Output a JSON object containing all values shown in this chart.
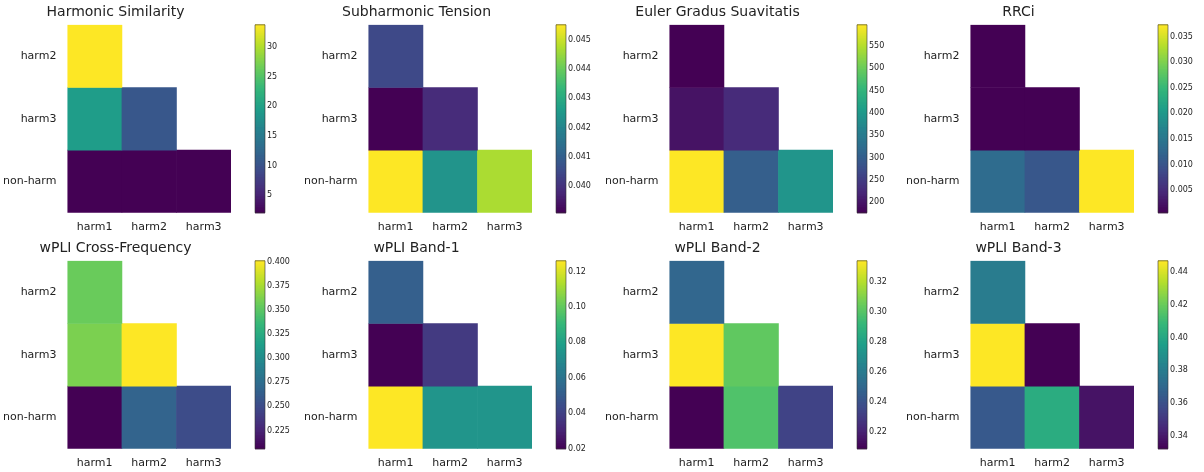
{
  "chart_data": [
    {
      "type": "heatmap",
      "title": "Harmonic Similarity",
      "categories": [
        "harm1",
        "harm2",
        "harm3"
      ],
      "y_categories": [
        "harm2",
        "harm3",
        "non-harm"
      ],
      "cells": [
        [
          33.8,
          null,
          null
        ],
        [
          19.5,
          10.6,
          null
        ],
        [
          2.0,
          2.0,
          2.0
        ]
      ],
      "clim": [
        2.0,
        33.8
      ],
      "cticks": [
        5,
        10,
        15,
        20,
        25,
        30
      ]
    },
    {
      "type": "heatmap",
      "title": "Subharmonic Tension",
      "categories": [
        "harm1",
        "harm2",
        "harm3"
      ],
      "y_categories": [
        "harm2",
        "harm3",
        "non-harm"
      ],
      "cells": [
        [
          0.0405,
          null,
          null
        ],
        [
          0.0391,
          0.0399,
          null
        ],
        [
          0.0455,
          0.0424,
          0.0447
        ]
      ],
      "clim": [
        0.0391,
        0.0455
      ],
      "cticks": [
        {
          "value": 0.04,
          "label": "0.040"
        },
        0.041,
        0.042,
        0.043,
        0.044,
        0.045
      ]
    },
    {
      "type": "heatmap",
      "title": "Euler Gradus Suavitatis",
      "categories": [
        "harm1",
        "harm2",
        "harm3"
      ],
      "y_categories": [
        "harm2",
        "harm3",
        "non-harm"
      ],
      "cells": [
        [
          176,
          null,
          null
        ],
        [
          197,
          227,
          null
        ],
        [
          597,
          302,
          395
        ]
      ],
      "clim": [
        176,
        597
      ],
      "cticks": [
        200,
        250,
        300,
        350,
        400,
        450,
        500,
        550
      ]
    },
    {
      "type": "heatmap",
      "title": "RRCi",
      "categories": [
        "harm1",
        "harm2",
        "harm3"
      ],
      "y_categories": [
        "harm2",
        "harm3",
        "non-harm"
      ],
      "cells": [
        [
          0.0006,
          null,
          null
        ],
        [
          0.0006,
          0.0006,
          null
        ],
        [
          0.0134,
          0.0105,
          0.0373
        ]
      ],
      "clim": [
        0.0006,
        0.0373
      ],
      "cticks": [
        0.005,
        {
          "value": 0.01,
          "label": "0.010"
        },
        0.015,
        {
          "value": 0.02,
          "label": "0.020"
        },
        0.025,
        {
          "value": 0.03,
          "label": "0.030"
        },
        0.035
      ]
    },
    {
      "type": "heatmap",
      "title": "wPLI Cross-Frequency",
      "categories": [
        "harm1",
        "harm2",
        "harm3"
      ],
      "y_categories": [
        "harm2",
        "harm3",
        "non-harm"
      ],
      "cells": [
        [
          0.356,
          null,
          null
        ],
        [
          0.362,
          0.401,
          null
        ],
        [
          0.206,
          0.268,
          0.251
        ]
      ],
      "clim": [
        0.206,
        0.401
      ],
      "cticks": [
        0.225,
        {
          "value": 0.25,
          "label": "0.250"
        },
        0.275,
        {
          "value": 0.3,
          "label": "0.300"
        },
        0.325,
        {
          "value": 0.35,
          "label": "0.350"
        },
        0.375,
        {
          "value": 0.4,
          "label": "0.400"
        }
      ]
    },
    {
      "type": "heatmap",
      "title": "wPLI Band-1",
      "categories": [
        "harm1",
        "harm2",
        "harm3"
      ],
      "y_categories": [
        "harm2",
        "harm3",
        "non-harm"
      ],
      "cells": [
        [
          0.052,
          null,
          null
        ],
        [
          0.02,
          0.038,
          null
        ],
        [
          0.126,
          0.075,
          0.075
        ]
      ],
      "clim": [
        0.02,
        0.126
      ],
      "cticks": [
        0.02,
        0.04,
        0.06,
        0.08,
        {
          "value": 0.1,
          "label": "0.10"
        },
        0.12
      ]
    },
    {
      "type": "heatmap",
      "title": "wPLI Band-2",
      "categories": [
        "harm1",
        "harm2",
        "harm3"
      ],
      "y_categories": [
        "harm2",
        "harm3",
        "non-harm"
      ],
      "cells": [
        [
          0.25,
          null,
          null
        ],
        [
          0.334,
          0.303,
          null
        ],
        [
          0.209,
          0.299,
          0.234
        ]
      ],
      "clim": [
        0.209,
        0.334
      ],
      "cticks": [
        0.22,
        0.24,
        0.26,
        0.28,
        {
          "value": 0.3,
          "label": "0.30"
        },
        0.32
      ]
    },
    {
      "type": "heatmap",
      "title": "wPLI Band-3",
      "categories": [
        "harm1",
        "harm2",
        "harm3"
      ],
      "y_categories": [
        "harm2",
        "harm3",
        "non-harm"
      ],
      "cells": [
        [
          0.38,
          null,
          null
        ],
        [
          0.447,
          0.332,
          null
        ],
        [
          0.364,
          0.403,
          0.338
        ]
      ],
      "clim": [
        0.332,
        0.447
      ],
      "cticks": [
        0.34,
        0.36,
        0.38,
        {
          "value": 0.4,
          "label": "0.40"
        },
        0.42,
        0.44
      ]
    }
  ]
}
